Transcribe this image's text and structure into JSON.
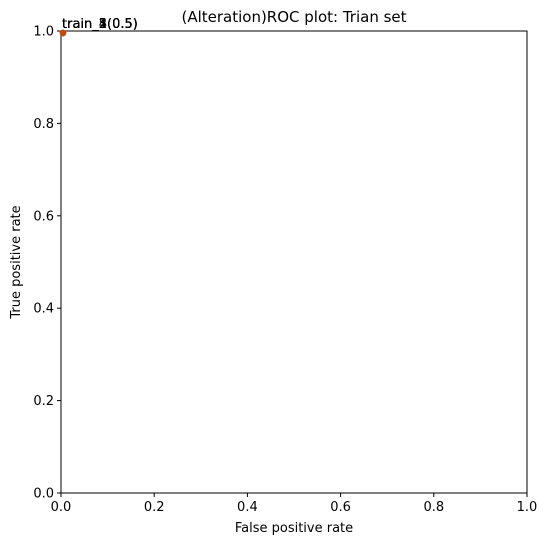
{
  "chart_data": {
    "type": "scatter",
    "title": "(Alteration)ROC plot: Trian set",
    "xlabel": "False positive rate",
    "ylabel": "True positive rate",
    "xlim": [
      0,
      1
    ],
    "ylim": [
      0,
      1
    ],
    "xticks": [
      "0.0",
      "0.2",
      "0.4",
      "0.6",
      "0.8",
      "1.0"
    ],
    "yticks": [
      "0.0",
      "0.2",
      "0.4",
      "0.6",
      "0.8",
      "1.0"
    ],
    "grid": false,
    "points": [
      {
        "x": 0.0,
        "y": 1.0,
        "label": "train_1(0.5)",
        "color": "#1f77b4"
      },
      {
        "x": 0.0,
        "y": 1.0,
        "label": "train_2(0.5)",
        "color": "#ff7f0e"
      },
      {
        "x": 0.0,
        "y": 1.0,
        "label": "train_3(0.5)",
        "color": "#2ca02c"
      },
      {
        "x": 0.0,
        "y": 1.0,
        "label": "train_4(0.5)",
        "color": "#d62728"
      },
      {
        "x": 0.0,
        "y": 1.0,
        "label": "train_5(0.5)",
        "color": "#c8460b"
      }
    ]
  }
}
